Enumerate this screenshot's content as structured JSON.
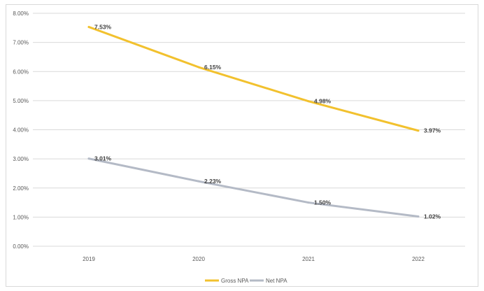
{
  "chart_data": {
    "type": "line",
    "title": "",
    "xlabel": "",
    "ylabel": "",
    "x": [
      "2019",
      "2020",
      "2021",
      "2022"
    ],
    "y_ticks": [
      "0.00%",
      "1.00%",
      "2.00%",
      "3.00%",
      "4.00%",
      "5.00%",
      "6.00%",
      "7.00%",
      "8.00%"
    ],
    "ylim": [
      0,
      8
    ],
    "grid": true,
    "legend_position": "bottom",
    "series": [
      {
        "name": "Gross NPA",
        "color": "#f2c12e",
        "values": [
          7.53,
          6.15,
          4.98,
          3.97
        ],
        "labels": [
          "7.53%",
          "6.15%",
          "4.98%",
          "3.97%"
        ]
      },
      {
        "name": "Net NPA",
        "color": "#b4bac6",
        "values": [
          3.01,
          2.23,
          1.5,
          1.02
        ],
        "labels": [
          "3.01%",
          "2.23%",
          "1.50%",
          "1.02%"
        ]
      }
    ]
  }
}
